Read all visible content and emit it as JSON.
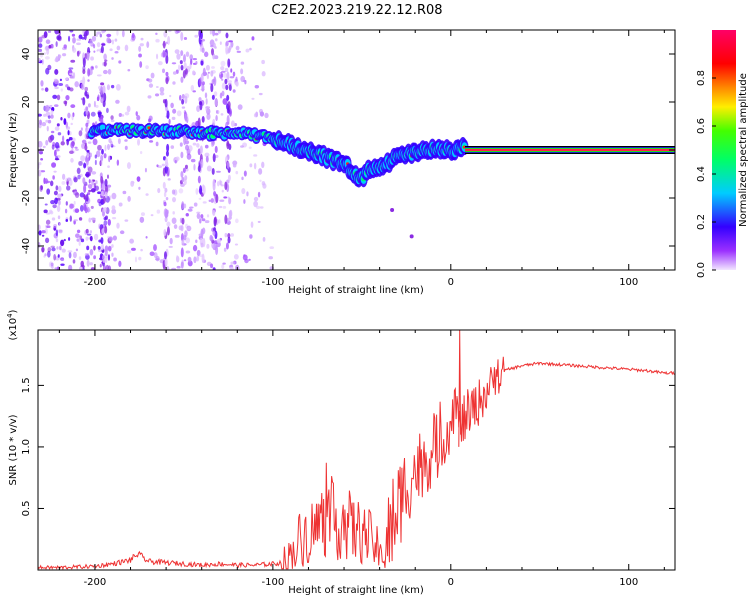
{
  "title": "C2E2.2023.219.22.12.R08",
  "colors": {
    "trace": "#ee3333",
    "axes": "#000000",
    "line_band_outer": "#2222cc",
    "line_band_mid": "#22dd22",
    "line_band_core": "#ff2244"
  },
  "chart_data": [
    {
      "type": "heatmap",
      "xlabel": "Height of straight line (km)",
      "ylabel": "Frequency (Hz)",
      "xlim": [
        -232,
        126
      ],
      "ylim": [
        -50,
        50
      ],
      "xticks": [
        -200,
        -100,
        0,
        100
      ],
      "yticks": [
        -40,
        -20,
        0,
        20,
        40
      ],
      "x_tick_labels": [
        "-200",
        "-100",
        "0",
        "100"
      ],
      "y_tick_labels": [
        "-40",
        "-20",
        "0",
        "20",
        "40"
      ],
      "grid": false,
      "colorbar": {
        "label": "Normalized spectral amplitude",
        "range": [
          0,
          1
        ],
        "ticks": [
          0.0,
          0.2,
          0.4,
          0.6,
          0.8
        ],
        "tick_labels": [
          "0.0",
          "0.2",
          "0.4",
          "0.6",
          "0.8"
        ],
        "colormap": "rainbow (violet-blue-cyan-green-yellow-red-magenta)"
      },
      "ridge": {
        "x": [
          -200,
          -180,
          -160,
          -140,
          -120,
          -100,
          -90,
          -80,
          -70,
          -60,
          -55,
          -50,
          -45,
          -40,
          -30,
          -20,
          -10,
          0,
          5,
          10,
          126
        ],
        "frequency": [
          8,
          8,
          8,
          7,
          7,
          5,
          2,
          0,
          -3,
          -6,
          -9,
          -12,
          -7,
          -7,
          -3,
          -1,
          0,
          0,
          1,
          0,
          0
        ]
      },
      "steady_line": {
        "x_start": 8,
        "x_end": 126,
        "frequency": 0
      }
    },
    {
      "type": "line",
      "xlabel": "Height of straight line (km)",
      "ylabel": "SNR (10 * v/v)",
      "multiplier": "(x10^4)",
      "multiplier_base": "(x10",
      "multiplier_exp": "4",
      "multiplier_end": ")",
      "xlim": [
        -232,
        126
      ],
      "ylim": [
        0,
        1.95
      ],
      "xticks": [
        -200,
        -100,
        0,
        100
      ],
      "yticks": [
        0.5,
        1.0,
        1.5
      ],
      "x_tick_labels": [
        "-200",
        "-100",
        "0",
        "100"
      ],
      "y_tick_labels": [
        "0.5",
        "1.0",
        "1.5"
      ],
      "grid": false,
      "series": [
        {
          "x": [
            -232,
            -220,
            -200,
            -190,
            -180,
            -176,
            -170,
            -160,
            -150,
            -140,
            -130,
            -120,
            -110,
            -100,
            -95,
            -90,
            -85,
            -80,
            -75,
            -70,
            -65,
            -60,
            -55,
            -50,
            -45,
            -42,
            -40,
            -38,
            -35,
            -30,
            -25,
            -20,
            -15,
            -10,
            -5,
            0,
            3,
            5,
            8,
            10,
            15,
            20,
            25,
            30,
            40,
            50,
            60,
            70,
            80,
            90,
            100,
            110,
            120,
            126
          ],
          "y": [
            0.02,
            0.02,
            0.03,
            0.05,
            0.08,
            0.13,
            0.07,
            0.06,
            0.05,
            0.04,
            0.05,
            0.04,
            0.04,
            0.05,
            0.06,
            0.12,
            0.25,
            0.3,
            0.35,
            0.45,
            0.38,
            0.4,
            0.33,
            0.3,
            0.25,
            0.2,
            0.1,
            0.1,
            0.25,
            0.5,
            0.7,
            0.8,
            0.9,
            0.95,
            1.05,
            1.2,
            1.4,
            1.1,
            1.25,
            1.25,
            1.35,
            1.45,
            1.55,
            1.62,
            1.66,
            1.68,
            1.67,
            1.66,
            1.65,
            1.64,
            1.63,
            1.62,
            1.6,
            1.6
          ]
        }
      ]
    }
  ]
}
